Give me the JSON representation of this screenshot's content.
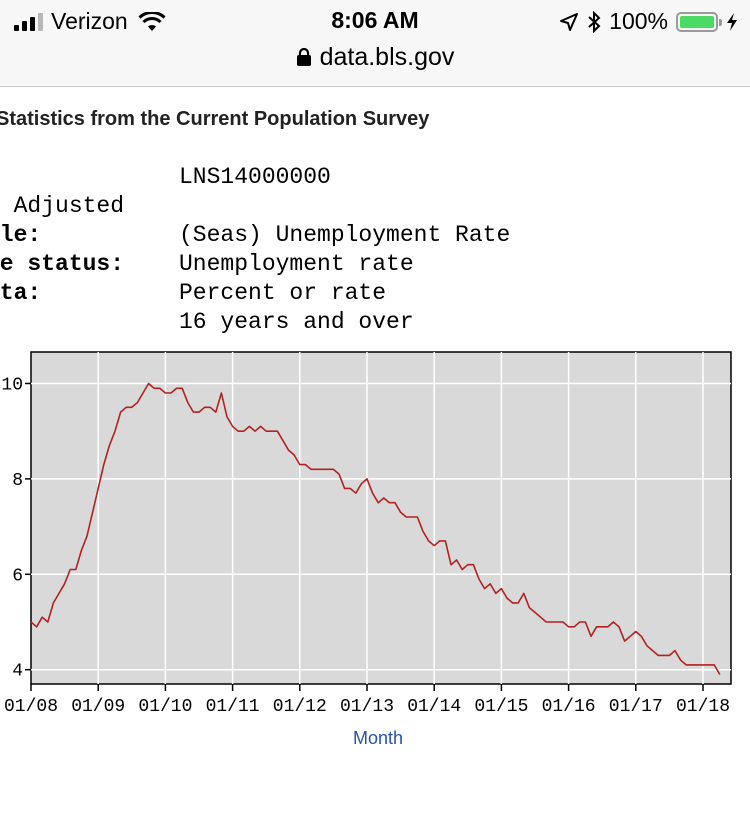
{
  "status_bar": {
    "carrier": "Verizon",
    "time": "8:06 AM",
    "battery": "100%"
  },
  "browser": {
    "url": "data.bls.gov"
  },
  "page": {
    "heading": "Statistics from the Current Population Survey",
    "rows": [
      {
        "label": ":",
        "value": "LNS14000000"
      },
      {
        "label": "y Adjusted",
        "value": ""
      },
      {
        "label": "tle:",
        "value": "(Seas) Unemployment Rate"
      },
      {
        "label": "ce status:",
        "value": "Unemployment rate"
      },
      {
        "label": "ata:",
        "value": "Percent or rate"
      },
      {
        "label": "",
        "value": "16 years and over"
      }
    ]
  },
  "chart_data": {
    "type": "line",
    "title": "",
    "xlabel": "Month",
    "ylabel": "",
    "ylim": [
      3.7,
      10.66
    ],
    "yticks": [
      4,
      6,
      8,
      10
    ],
    "xticks": [
      "01/08",
      "01/09",
      "01/10",
      "01/11",
      "01/12",
      "01/13",
      "01/14",
      "01/15",
      "01/16",
      "01/17",
      "01/18"
    ],
    "grid": true,
    "line_color": "#b22222",
    "plot_bg": "#d9d9d9",
    "series": [
      {
        "name": "",
        "x": [
          "2008-01",
          "2008-02",
          "2008-03",
          "2008-04",
          "2008-05",
          "2008-06",
          "2008-07",
          "2008-08",
          "2008-09",
          "2008-10",
          "2008-11",
          "2008-12",
          "2009-01",
          "2009-02",
          "2009-03",
          "2009-04",
          "2009-05",
          "2009-06",
          "2009-07",
          "2009-08",
          "2009-09",
          "2009-10",
          "2009-11",
          "2009-12",
          "2010-01",
          "2010-02",
          "2010-03",
          "2010-04",
          "2010-05",
          "2010-06",
          "2010-07",
          "2010-08",
          "2010-09",
          "2010-10",
          "2010-11",
          "2010-12",
          "2011-01",
          "2011-02",
          "2011-03",
          "2011-04",
          "2011-05",
          "2011-06",
          "2011-07",
          "2011-08",
          "2011-09",
          "2011-10",
          "2011-11",
          "2011-12",
          "2012-01",
          "2012-02",
          "2012-03",
          "2012-04",
          "2012-05",
          "2012-06",
          "2012-07",
          "2012-08",
          "2012-09",
          "2012-10",
          "2012-11",
          "2012-12",
          "2013-01",
          "2013-02",
          "2013-03",
          "2013-04",
          "2013-05",
          "2013-06",
          "2013-07",
          "2013-08",
          "2013-09",
          "2013-10",
          "2013-11",
          "2013-12",
          "2014-01",
          "2014-02",
          "2014-03",
          "2014-04",
          "2014-05",
          "2014-06",
          "2014-07",
          "2014-08",
          "2014-09",
          "2014-10",
          "2014-11",
          "2014-12",
          "2015-01",
          "2015-02",
          "2015-03",
          "2015-04",
          "2015-05",
          "2015-06",
          "2015-07",
          "2015-08",
          "2015-09",
          "2015-10",
          "2015-11",
          "2015-12",
          "2016-01",
          "2016-02",
          "2016-03",
          "2016-04",
          "2016-05",
          "2016-06",
          "2016-07",
          "2016-08",
          "2016-09",
          "2016-10",
          "2016-11",
          "2016-12",
          "2017-01",
          "2017-02",
          "2017-03",
          "2017-04",
          "2017-05",
          "2017-06",
          "2017-07",
          "2017-08",
          "2017-09",
          "2017-10",
          "2017-11",
          "2017-12",
          "2018-01",
          "2018-02",
          "2018-03",
          "2018-04"
        ],
        "values": [
          5.0,
          4.9,
          5.1,
          5.0,
          5.4,
          5.6,
          5.8,
          6.1,
          6.1,
          6.5,
          6.8,
          7.3,
          7.8,
          8.3,
          8.7,
          9.0,
          9.4,
          9.5,
          9.5,
          9.6,
          9.8,
          10.0,
          9.9,
          9.9,
          9.8,
          9.8,
          9.9,
          9.9,
          9.6,
          9.4,
          9.4,
          9.5,
          9.5,
          9.4,
          9.8,
          9.3,
          9.1,
          9.0,
          9.0,
          9.1,
          9.0,
          9.1,
          9.0,
          9.0,
          9.0,
          8.8,
          8.6,
          8.5,
          8.3,
          8.3,
          8.2,
          8.2,
          8.2,
          8.2,
          8.2,
          8.1,
          7.8,
          7.8,
          7.7,
          7.9,
          8.0,
          7.7,
          7.5,
          7.6,
          7.5,
          7.5,
          7.3,
          7.2,
          7.2,
          7.2,
          6.9,
          6.7,
          6.6,
          6.7,
          6.7,
          6.2,
          6.3,
          6.1,
          6.2,
          6.2,
          5.9,
          5.7,
          5.8,
          5.6,
          5.7,
          5.5,
          5.4,
          5.4,
          5.6,
          5.3,
          5.2,
          5.1,
          5.0,
          5.0,
          5.0,
          5.0,
          4.9,
          4.9,
          5.0,
          5.0,
          4.7,
          4.9,
          4.9,
          4.9,
          5.0,
          4.9,
          4.6,
          4.7,
          4.8,
          4.7,
          4.5,
          4.4,
          4.3,
          4.3,
          4.3,
          4.4,
          4.2,
          4.1,
          4.1,
          4.1,
          4.1,
          4.1,
          4.1,
          3.9
        ]
      }
    ]
  }
}
